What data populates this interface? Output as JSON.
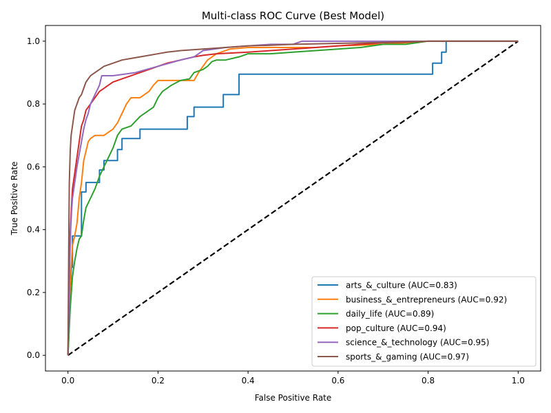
{
  "chart_data": {
    "type": "line",
    "title": "Multi-class ROC Curve (Best Model)",
    "xlabel": "False Positive Rate",
    "ylabel": "True Positive Rate",
    "xlim": [
      -0.05,
      1.05
    ],
    "ylim": [
      -0.05,
      1.05
    ],
    "xticks": [
      0.0,
      0.2,
      0.4,
      0.6,
      0.8,
      1.0
    ],
    "yticks": [
      0.0,
      0.2,
      0.4,
      0.6,
      0.8,
      1.0
    ],
    "xtick_labels": [
      "0.0",
      "0.2",
      "0.4",
      "0.6",
      "0.8",
      "1.0"
    ],
    "ytick_labels": [
      "0.0",
      "0.2",
      "0.4",
      "0.6",
      "0.8",
      "1.0"
    ],
    "grid": false,
    "legend_position": "lower-right",
    "diagonal": {
      "x": [
        0,
        1
      ],
      "y": [
        0,
        1
      ],
      "color": "#000000",
      "style": "dashed"
    },
    "series": [
      {
        "name": "arts_&_culture (AUC=0.83)",
        "color": "#1f77b4",
        "x": [
          0,
          0.003,
          0.005,
          0.008,
          0.01,
          0.01,
          0.02,
          0.02,
          0.03,
          0.03,
          0.04,
          0.04,
          0.06,
          0.06,
          0.07,
          0.07,
          0.08,
          0.08,
          0.11,
          0.11,
          0.12,
          0.12,
          0.16,
          0.16,
          0.265,
          0.265,
          0.28,
          0.28,
          0.345,
          0.345,
          0.38,
          0.38,
          0.81,
          0.81,
          0.83,
          0.83,
          0.84,
          0.84,
          1.0
        ],
        "y": [
          0,
          0.1,
          0.21,
          0.28,
          0.28,
          0.38,
          0.38,
          0.38,
          0.38,
          0.52,
          0.52,
          0.55,
          0.55,
          0.55,
          0.55,
          0.59,
          0.59,
          0.62,
          0.62,
          0.655,
          0.655,
          0.69,
          0.69,
          0.72,
          0.72,
          0.76,
          0.76,
          0.79,
          0.79,
          0.83,
          0.83,
          0.895,
          0.895,
          0.93,
          0.93,
          0.965,
          0.965,
          1.0,
          1.0
        ]
      },
      {
        "name": "business_&_entrepreneurs (AUC=0.92)",
        "color": "#ff7f0e",
        "x": [
          0,
          0.003,
          0.005,
          0.008,
          0.01,
          0.015,
          0.02,
          0.025,
          0.03,
          0.035,
          0.04,
          0.045,
          0.05,
          0.06,
          0.08,
          0.1,
          0.11,
          0.12,
          0.13,
          0.14,
          0.16,
          0.18,
          0.19,
          0.2,
          0.22,
          0.25,
          0.28,
          0.29,
          0.3,
          0.31,
          0.33,
          0.36,
          0.4,
          0.45,
          0.5,
          0.55,
          0.6,
          0.7,
          0.8,
          0.9,
          1.0
        ],
        "y": [
          0,
          0.15,
          0.23,
          0.3,
          0.35,
          0.38,
          0.42,
          0.5,
          0.55,
          0.62,
          0.65,
          0.68,
          0.69,
          0.7,
          0.7,
          0.72,
          0.74,
          0.77,
          0.8,
          0.82,
          0.82,
          0.84,
          0.86,
          0.875,
          0.875,
          0.875,
          0.875,
          0.9,
          0.92,
          0.94,
          0.96,
          0.975,
          0.98,
          0.98,
          0.98,
          0.98,
          0.985,
          0.99,
          1.0,
          1.0,
          1.0
        ]
      },
      {
        "name": "daily_life (AUC=0.89)",
        "color": "#2ca02c",
        "x": [
          0,
          0.005,
          0.01,
          0.015,
          0.02,
          0.025,
          0.03,
          0.035,
          0.04,
          0.05,
          0.06,
          0.07,
          0.08,
          0.09,
          0.1,
          0.11,
          0.12,
          0.14,
          0.16,
          0.17,
          0.18,
          0.19,
          0.2,
          0.21,
          0.22,
          0.23,
          0.25,
          0.27,
          0.28,
          0.3,
          0.31,
          0.32,
          0.33,
          0.35,
          0.38,
          0.4,
          0.45,
          0.5,
          0.55,
          0.6,
          0.65,
          0.7,
          0.75,
          0.8,
          0.9,
          1.0
        ],
        "y": [
          0,
          0.15,
          0.25,
          0.3,
          0.34,
          0.37,
          0.38,
          0.43,
          0.47,
          0.5,
          0.53,
          0.57,
          0.6,
          0.63,
          0.66,
          0.7,
          0.72,
          0.73,
          0.76,
          0.77,
          0.78,
          0.79,
          0.82,
          0.84,
          0.85,
          0.86,
          0.875,
          0.88,
          0.9,
          0.91,
          0.92,
          0.935,
          0.94,
          0.94,
          0.95,
          0.96,
          0.96,
          0.965,
          0.97,
          0.975,
          0.98,
          0.99,
          0.99,
          1.0,
          1.0,
          1.0
        ]
      },
      {
        "name": "pop_culture (AUC=0.94)",
        "color": "#d62728",
        "x": [
          0,
          0.002,
          0.004,
          0.006,
          0.008,
          0.01,
          0.015,
          0.02,
          0.025,
          0.03,
          0.035,
          0.04,
          0.05,
          0.06,
          0.07,
          0.08,
          0.09,
          0.1,
          0.12,
          0.14,
          0.16,
          0.18,
          0.2,
          0.22,
          0.25,
          0.28,
          0.3,
          0.33,
          0.36,
          0.4,
          0.45,
          0.5,
          0.55,
          0.6,
          0.65,
          0.7,
          0.75,
          0.8,
          0.9,
          1.0
        ],
        "y": [
          0,
          0.2,
          0.35,
          0.42,
          0.48,
          0.53,
          0.58,
          0.63,
          0.68,
          0.73,
          0.75,
          0.78,
          0.8,
          0.82,
          0.84,
          0.85,
          0.86,
          0.87,
          0.88,
          0.89,
          0.9,
          0.91,
          0.92,
          0.93,
          0.94,
          0.95,
          0.955,
          0.96,
          0.962,
          0.965,
          0.97,
          0.975,
          0.98,
          0.985,
          0.99,
          0.995,
          0.997,
          1.0,
          1.0,
          1.0
        ]
      },
      {
        "name": "science_&_technology (AUC=0.95)",
        "color": "#9467bd",
        "x": [
          0,
          0.002,
          0.004,
          0.006,
          0.008,
          0.01,
          0.015,
          0.02,
          0.025,
          0.03,
          0.035,
          0.04,
          0.045,
          0.05,
          0.06,
          0.07,
          0.075,
          0.1,
          0.15,
          0.2,
          0.25,
          0.28,
          0.3,
          0.35,
          0.4,
          0.45,
          0.5,
          0.52,
          0.6,
          0.7,
          0.8,
          1.0
        ],
        "y": [
          0,
          0.15,
          0.3,
          0.4,
          0.46,
          0.5,
          0.55,
          0.6,
          0.64,
          0.68,
          0.72,
          0.75,
          0.77,
          0.8,
          0.83,
          0.86,
          0.89,
          0.89,
          0.9,
          0.92,
          0.94,
          0.95,
          0.97,
          0.98,
          0.985,
          0.99,
          0.99,
          1.0,
          1.0,
          1.0,
          1.0,
          1.0
        ]
      },
      {
        "name": "sports_&_gaming (AUC=0.97)",
        "color": "#8c564b",
        "x": [
          0,
          0.002,
          0.003,
          0.005,
          0.007,
          0.01,
          0.012,
          0.015,
          0.02,
          0.025,
          0.03,
          0.035,
          0.04,
          0.045,
          0.05,
          0.06,
          0.07,
          0.08,
          0.1,
          0.12,
          0.14,
          0.16,
          0.18,
          0.2,
          0.22,
          0.25,
          0.3,
          0.35,
          0.4,
          0.45,
          0.5,
          0.6,
          0.7,
          0.8,
          0.9,
          1.0
        ],
        "y": [
          0,
          0.4,
          0.55,
          0.65,
          0.7,
          0.73,
          0.75,
          0.78,
          0.8,
          0.82,
          0.83,
          0.85,
          0.87,
          0.88,
          0.89,
          0.9,
          0.91,
          0.92,
          0.93,
          0.94,
          0.945,
          0.95,
          0.955,
          0.96,
          0.965,
          0.97,
          0.975,
          0.98,
          0.985,
          0.987,
          0.99,
          0.993,
          0.996,
          1.0,
          1.0,
          1.0
        ]
      }
    ]
  }
}
